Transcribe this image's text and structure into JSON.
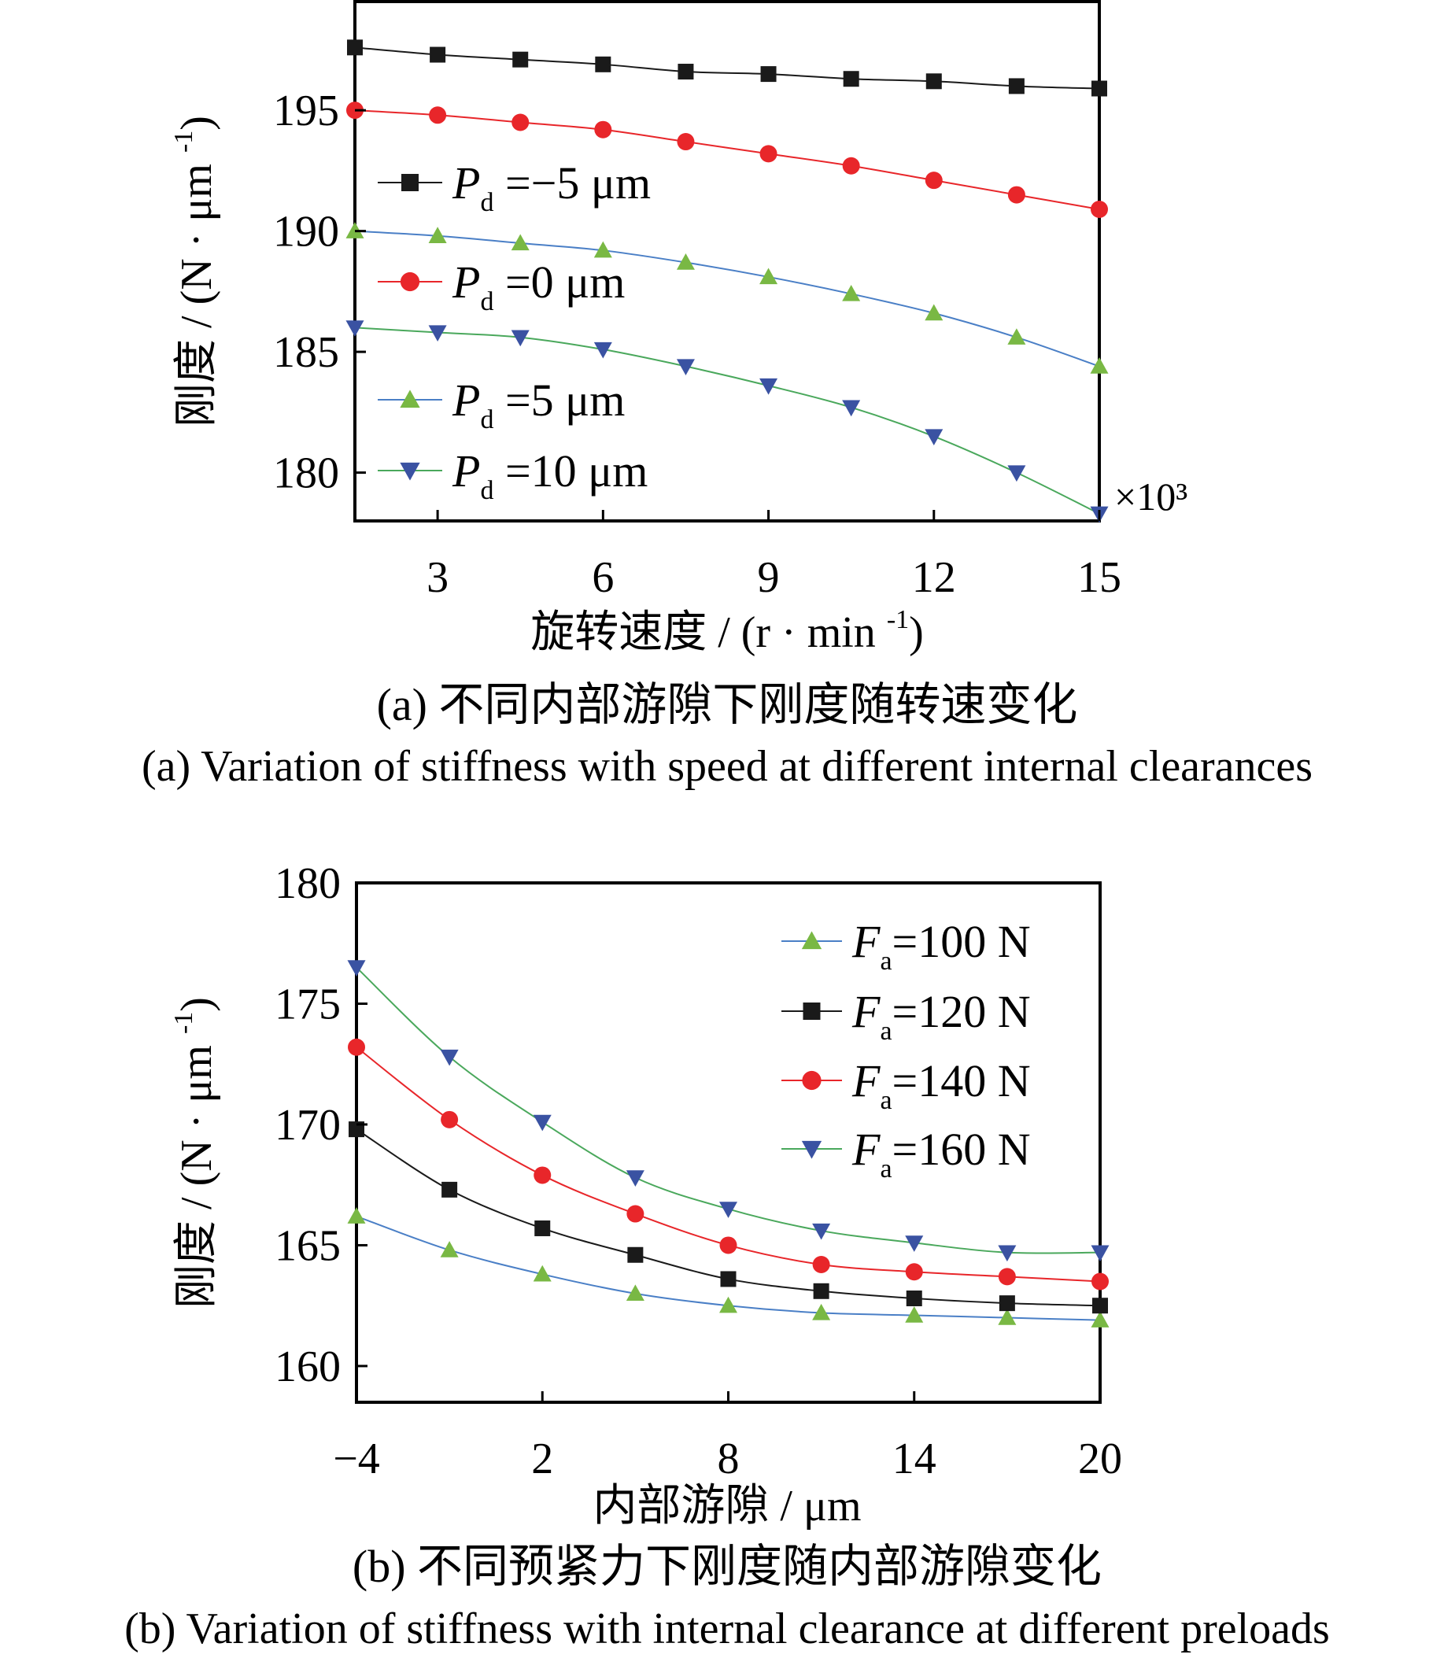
{
  "chart_data": [
    {
      "type": "line",
      "caption_cn": "(a)  不同内部游隙下刚度随转速变化",
      "caption_en": "(a)  Variation of stiffness with speed at different internal clearances",
      "xlabel": "旋转速度 / (r · min⁻¹)",
      "ylabel": "刚度 / (N · μm⁻¹)",
      "x_multiplier": "×10³",
      "xlim": [
        1.5,
        15
      ],
      "ylim": [
        178,
        199.5
      ],
      "xticks": [
        3,
        6,
        9,
        12,
        15
      ],
      "yticks": [
        180,
        185,
        190,
        195
      ],
      "legend_position": "left",
      "x": [
        1.5,
        3,
        4.5,
        6,
        7.5,
        9,
        10.5,
        12,
        13.5,
        15
      ],
      "series": [
        {
          "name": "Pd =−5 μm",
          "legend_sym": "P",
          "legend_sub": "d",
          "legend_rest": " =−5 μm",
          "color": "#1a1a1a",
          "marker": "square",
          "values": [
            197.6,
            197.3,
            197.1,
            196.9,
            196.6,
            196.5,
            196.3,
            196.2,
            196.0,
            195.9
          ]
        },
        {
          "name": "Pd =0 μm",
          "legend_sym": "P",
          "legend_sub": "d",
          "legend_rest": " =0 μm",
          "color": "#e8262a",
          "marker": "circle",
          "values": [
            195.0,
            194.8,
            194.5,
            194.2,
            193.7,
            193.2,
            192.7,
            192.1,
            191.5,
            190.9
          ]
        },
        {
          "name": "Pd =5 μm",
          "legend_sym": "P",
          "legend_sub": "d",
          "legend_rest": " =5 μm",
          "color": "#79b844",
          "line_color": "#4a7fc6",
          "marker": "triangle-up",
          "values": [
            190.0,
            189.8,
            189.5,
            189.2,
            188.7,
            188.1,
            187.4,
            186.6,
            185.6,
            184.4
          ]
        },
        {
          "name": "Pd =10 μm",
          "legend_sym": "P",
          "legend_sub": "d",
          "legend_rest": " =10 μm",
          "color": "#3a52a2",
          "line_color": "#4aa85c",
          "marker": "triangle-down",
          "values": [
            186.0,
            185.8,
            185.6,
            185.1,
            184.4,
            183.6,
            182.7,
            181.5,
            180.0,
            178.3
          ]
        }
      ]
    },
    {
      "type": "line",
      "caption_cn": "(b)  不同预紧力下刚度随内部游隙变化",
      "caption_en": "(b)  Variation of stiffness with internal clearance at different preloads",
      "xlabel": "内部游隙 / μm",
      "ylabel": "刚度 / (N · μm⁻¹)",
      "xlim": [
        -4,
        20
      ],
      "ylim": [
        158.5,
        180
      ],
      "xticks": [
        -4,
        2,
        8,
        14,
        20
      ],
      "xtick_labels": [
        "−4",
        "2",
        "8",
        "14",
        "20"
      ],
      "yticks": [
        160,
        165,
        170,
        175,
        180
      ],
      "legend_position": "top-right",
      "x": [
        -4,
        -1,
        2,
        5,
        8,
        11,
        14,
        17,
        20
      ],
      "series": [
        {
          "name": "Fa=100 N",
          "legend_sym": "F",
          "legend_sub": "a",
          "legend_rest": "=100 N",
          "color": "#79b844",
          "line_color": "#4a7fc6",
          "marker": "triangle-up",
          "values": [
            166.2,
            164.8,
            163.8,
            163.0,
            162.5,
            162.2,
            162.1,
            162.0,
            161.9
          ]
        },
        {
          "name": "Fa=120 N",
          "legend_sym": "F",
          "legend_sub": "a",
          "legend_rest": "=120 N",
          "color": "#1a1a1a",
          "marker": "square",
          "values": [
            169.8,
            167.3,
            165.7,
            164.6,
            163.6,
            163.1,
            162.8,
            162.6,
            162.5
          ]
        },
        {
          "name": "Fa=140 N",
          "legend_sym": "F",
          "legend_sub": "a",
          "legend_rest": "=140 N",
          "color": "#e8262a",
          "marker": "circle",
          "values": [
            173.2,
            170.2,
            167.9,
            166.3,
            165.0,
            164.2,
            163.9,
            163.7,
            163.5
          ]
        },
        {
          "name": "Fa=160 N",
          "legend_sym": "F",
          "legend_sub": "a",
          "legend_rest": "=160 N",
          "color": "#3a52a2",
          "line_color": "#4aa85c",
          "marker": "triangle-down",
          "values": [
            176.5,
            172.8,
            170.1,
            167.8,
            166.5,
            165.6,
            165.1,
            164.7,
            164.7
          ]
        }
      ]
    }
  ]
}
